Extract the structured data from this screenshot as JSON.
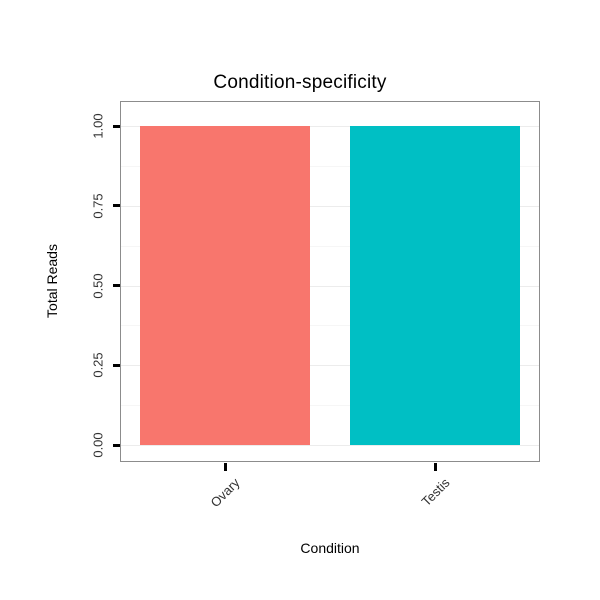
{
  "chart_data": {
    "type": "bar",
    "title": "Condition-specificity",
    "xlabel": "Condition",
    "ylabel": "Total Reads",
    "categories": [
      "Ovary",
      "Testis"
    ],
    "values": [
      1.0,
      1.0
    ],
    "ylim": [
      0,
      1.0
    ],
    "yticks": [
      "0.00",
      "0.25",
      "0.50",
      "0.75",
      "1.00"
    ],
    "bar_colors": [
      "#F8766D",
      "#00BFC4"
    ],
    "grid": "major-horizontal",
    "legend": "none",
    "panel_border_color": "#8c8c8c",
    "background_color": "#ffffff"
  }
}
